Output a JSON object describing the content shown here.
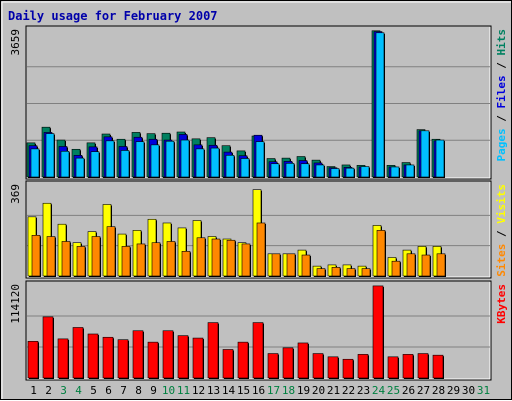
{
  "chart_data": {
    "type": "bar",
    "title": "Daily usage for February 2007",
    "colors": {
      "background": "#c0c0c0",
      "panel": "#c0c0c0",
      "grid": "#808080",
      "title": "#0000aa",
      "hits": "#008060",
      "files": "#0000dd",
      "pages": "#00c0ff",
      "visits": "#ffff00",
      "sites": "#ff8800",
      "kbytes": "#ff0000",
      "weekday_label": "#000000",
      "weekend_label": "#008040"
    },
    "days": [
      "1",
      "2",
      "3",
      "4",
      "5",
      "6",
      "7",
      "8",
      "9",
      "10",
      "11",
      "12",
      "13",
      "14",
      "15",
      "16",
      "17",
      "18",
      "19",
      "20",
      "21",
      "22",
      "23",
      "24",
      "25",
      "26",
      "27",
      "28",
      "29",
      "30",
      "31"
    ],
    "weekend_days": [
      "3",
      "4",
      "10",
      "11",
      "17",
      "18",
      "24",
      "25",
      "31"
    ],
    "panels": [
      {
        "name": "hits-files-pages",
        "scale_label": "3659",
        "ymax": 3659,
        "legend": [
          {
            "text": "Pages",
            "color": "#00c0ff"
          },
          {
            "text": " / ",
            "color": "#000000"
          },
          {
            "text": "Files",
            "color": "#0000dd"
          },
          {
            "text": " / ",
            "color": "#000000"
          },
          {
            "text": "Hits",
            "color": "#008060"
          }
        ],
        "series": [
          {
            "name": "Hits",
            "color": "#008060",
            "values": [
              850,
              1240,
              920,
              690,
              850,
              1070,
              940,
              1110,
              1080,
              1090,
              1120,
              950,
              980,
              780,
              650,
              1020,
              460,
              470,
              510,
              420,
              260,
              300,
              290,
              3640,
              290,
              360,
              1180,
              940,
              0,
              0,
              0
            ]
          },
          {
            "name": "Files",
            "color": "#0000dd",
            "values": [
              780,
              1110,
              760,
              540,
              750,
              1000,
              760,
              990,
              940,
              920,
              1060,
              800,
              790,
              620,
              530,
              1040,
              380,
              390,
              410,
              350,
              230,
              240,
              250,
              3620,
              250,
              300,
              1150,
              900,
              0,
              0,
              0
            ]
          },
          {
            "name": "Pages",
            "color": "#00c0ff",
            "values": [
              700,
              1080,
              640,
              470,
              630,
              900,
              660,
              880,
              800,
              890,
              920,
              700,
              720,
              540,
              460,
              880,
              330,
              340,
              330,
              300,
              210,
              220,
              260,
              3590,
              250,
              300,
              1150,
              920,
              0,
              0,
              0
            ]
          }
        ]
      },
      {
        "name": "visits-sites",
        "scale_label": "369",
        "ymax": 369,
        "legend": [
          {
            "text": "Sites",
            "color": "#ff8800"
          },
          {
            "text": " / ",
            "color": "#000000"
          },
          {
            "text": "Visits",
            "color": "#ffff00"
          }
        ],
        "series": [
          {
            "name": "Visits",
            "color": "#ffff00",
            "values": [
              240,
              295,
              210,
              135,
              180,
              290,
              170,
              185,
              230,
              215,
              195,
              225,
              160,
              150,
              135,
              350,
              90,
              90,
              105,
              40,
              45,
              45,
              40,
              205,
              75,
              105,
              120,
              120,
              0,
              0,
              0
            ]
          },
          {
            "name": "Sites",
            "color": "#ff8800",
            "values": [
              165,
              160,
              140,
              120,
              160,
              200,
              120,
              130,
              135,
              140,
              100,
              155,
              150,
              145,
              130,
              215,
              90,
              90,
              85,
              30,
              35,
              30,
              30,
              185,
              60,
              90,
              85,
              90,
              0,
              0,
              0
            ]
          }
        ]
      },
      {
        "name": "kbytes",
        "scale_label": "114120",
        "ymax": 114120,
        "legend": [
          {
            "text": "KBytes",
            "color": "#ff0000"
          }
        ],
        "series": [
          {
            "name": "KBytes",
            "color": "#ff0000",
            "values": [
              45000,
              75000,
              48000,
              62000,
              54000,
              50000,
              47000,
              58000,
              44000,
              58000,
              52000,
              49000,
              68000,
              35000,
              44000,
              68000,
              30000,
              37000,
              43000,
              30000,
              26000,
              23000,
              29000,
              113000,
              26000,
              29000,
              30000,
              28000,
              0,
              0,
              0
            ]
          }
        ]
      }
    ]
  }
}
